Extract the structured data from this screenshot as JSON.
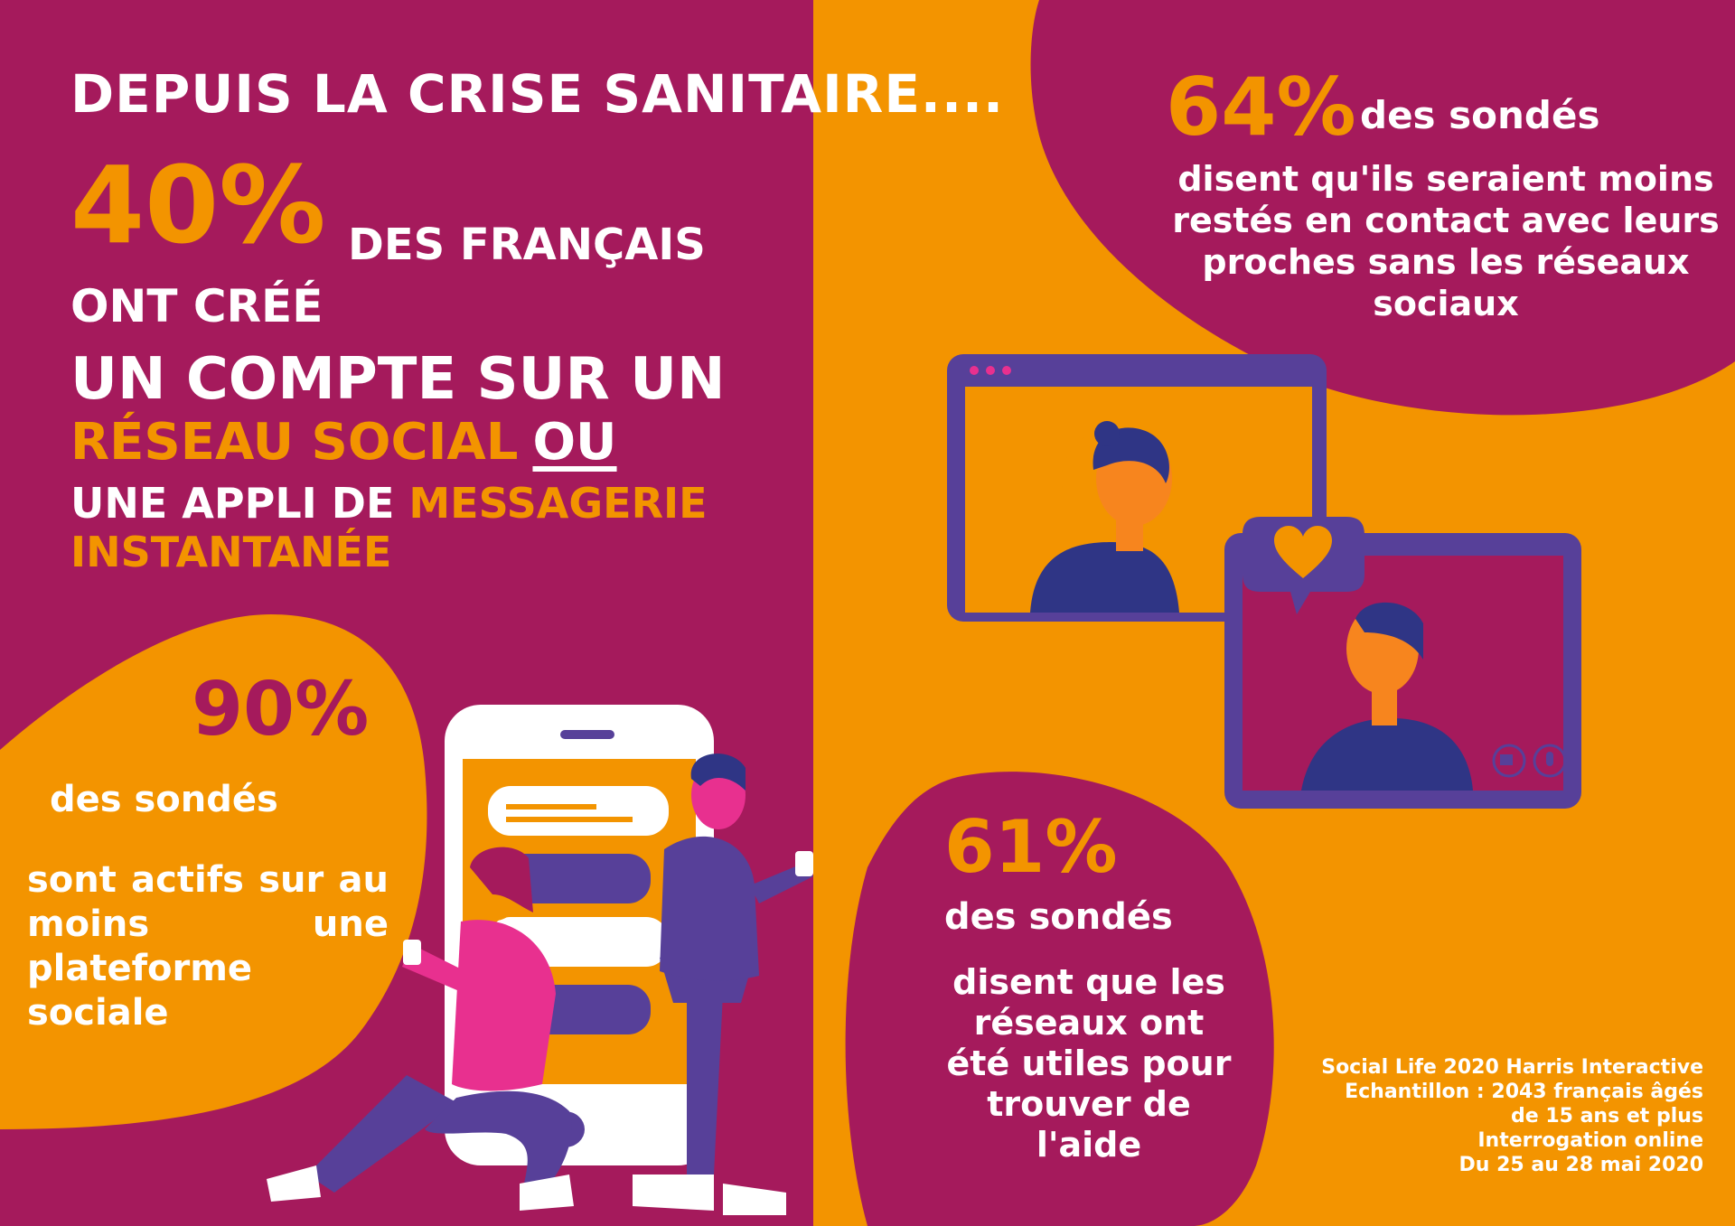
{
  "colors": {
    "plum": "#a51a5c",
    "orange": "#f39400",
    "white": "#ffffff",
    "purple": "#574099",
    "navy": "#2f3585",
    "pink": "#e8308f"
  },
  "headline": {
    "title": "DEPUIS LA CRISE SANITAIRE....",
    "percent": "40%",
    "line1": "DES FRANÇAIS",
    "line2": "ONT CRÉÉ",
    "line3": "UN COMPTE SUR UN",
    "line4_highlight": "RÉSEAU SOCIAL",
    "line4_or": "OU",
    "line5_start": "UNE APPLI DE ",
    "line5_highlight": "MESSAGERIE",
    "line6_highlight": "INSTANTANÉE"
  },
  "stat_90": {
    "percent": "90%",
    "label": "des sondés",
    "description": "sont actifs sur au moins une plateforme sociale"
  },
  "stat_64": {
    "percent": "64%",
    "label": "des sondés",
    "description": "disent qu'ils seraient moins restés en contact avec leurs proches sans les réseaux sociaux"
  },
  "stat_61": {
    "percent": "61%",
    "label": "des sondés",
    "description": "disent que les réseaux ont été utiles pour trouver de l'aide"
  },
  "source": {
    "line1": "Social Life 2020 Harris Interactive",
    "line2": "Echantillon : 2043 français âgés",
    "line3": "de 15 ans et plus",
    "line4": "Interrogation online",
    "line5": "Du 25 au 28 mai 2020"
  },
  "icons": [
    "heart-icon",
    "camera-icon",
    "microphone-icon"
  ]
}
